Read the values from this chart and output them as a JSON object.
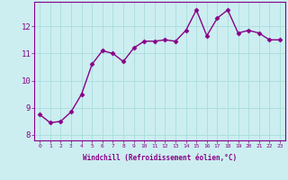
{
  "x": [
    0,
    1,
    2,
    3,
    4,
    5,
    6,
    7,
    8,
    9,
    10,
    11,
    12,
    13,
    14,
    15,
    16,
    17,
    18,
    19,
    20,
    21,
    22,
    23
  ],
  "y": [
    8.75,
    8.45,
    8.5,
    8.85,
    9.5,
    10.6,
    11.1,
    11.0,
    10.7,
    11.2,
    11.45,
    11.45,
    11.5,
    11.45,
    11.85,
    12.6,
    11.65,
    12.3,
    12.6,
    11.75,
    11.85,
    11.75,
    11.5,
    11.5
  ],
  "line_color": "#880088",
  "marker": "D",
  "marker_size": 2.5,
  "bg_color": "#cceef0",
  "grid_color": "#aadddd",
  "xlabel": "Windchill (Refroidissement éolien,°C)",
  "ylabel": "",
  "xlim": [
    -0.5,
    23.5
  ],
  "ylim": [
    7.8,
    12.9
  ],
  "yticks": [
    8,
    9,
    10,
    11,
    12
  ],
  "xticks": [
    0,
    1,
    2,
    3,
    4,
    5,
    6,
    7,
    8,
    9,
    10,
    11,
    12,
    13,
    14,
    15,
    16,
    17,
    18,
    19,
    20,
    21,
    22,
    23
  ],
  "font_color": "#880088",
  "linewidth": 1.0
}
